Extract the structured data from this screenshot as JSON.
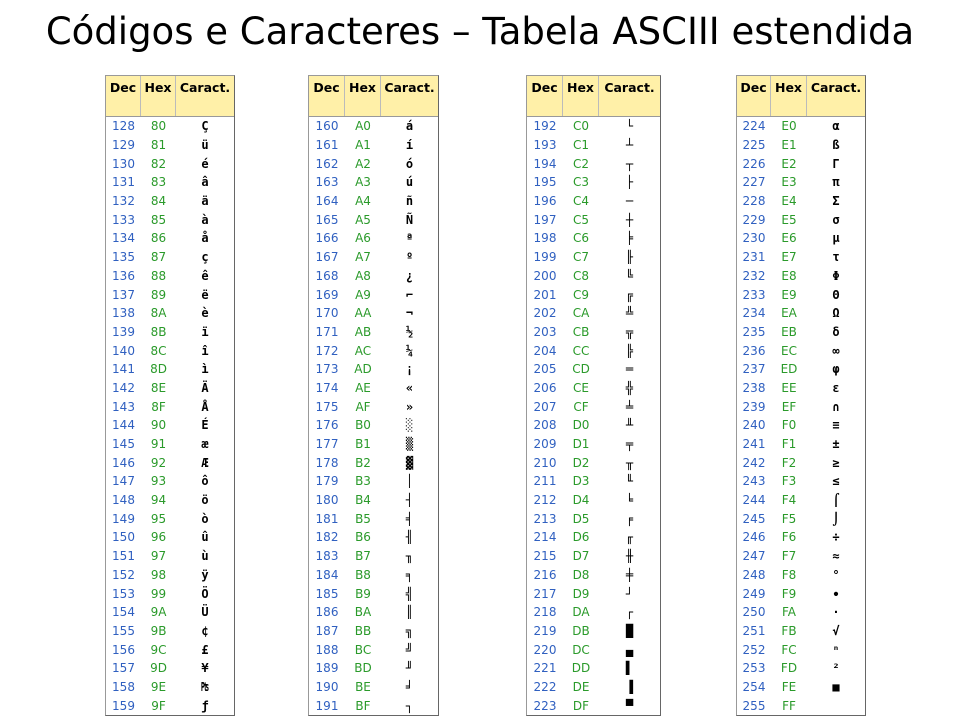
{
  "title": "Códigos e Caracteres – Tabela ASCIII estendida",
  "tables": [
    {
      "header": [
        "Dec",
        "Hex",
        "Caract."
      ],
      "rows": [
        [
          128,
          "80",
          "Ç"
        ],
        [
          129,
          "81",
          "ü"
        ],
        [
          130,
          "82",
          "é"
        ],
        [
          131,
          "83",
          "â"
        ],
        [
          132,
          "84",
          "ä"
        ],
        [
          133,
          "85",
          "à"
        ],
        [
          134,
          "86",
          "å"
        ],
        [
          135,
          "87",
          "ç"
        ],
        [
          136,
          "88",
          "ê"
        ],
        [
          137,
          "89",
          "ë"
        ],
        [
          138,
          "8A",
          "è"
        ],
        [
          139,
          "8B",
          "ï"
        ],
        [
          140,
          "8C",
          "î"
        ],
        [
          141,
          "8D",
          "ì"
        ],
        [
          142,
          "8E",
          "Ä"
        ],
        [
          143,
          "8F",
          "Å"
        ],
        [
          144,
          "90",
          "É"
        ],
        [
          145,
          "91",
          "æ"
        ],
        [
          146,
          "92",
          "Æ"
        ],
        [
          147,
          "93",
          "ô"
        ],
        [
          148,
          "94",
          "ö"
        ],
        [
          149,
          "95",
          "ò"
        ],
        [
          150,
          "96",
          "û"
        ],
        [
          151,
          "97",
          "ù"
        ],
        [
          152,
          "98",
          "ÿ"
        ],
        [
          153,
          "99",
          "Ö"
        ],
        [
          154,
          "9A",
          "Ü"
        ],
        [
          155,
          "9B",
          "¢"
        ],
        [
          156,
          "9C",
          "£"
        ],
        [
          157,
          "9D",
          "¥"
        ],
        [
          158,
          "9E",
          "₧"
        ],
        [
          159,
          "9F",
          "ƒ"
        ]
      ]
    },
    {
      "header": [
        "Dec",
        "Hex",
        "Caract."
      ],
      "rows": [
        [
          160,
          "A0",
          "á"
        ],
        [
          161,
          "A1",
          "í"
        ],
        [
          162,
          "A2",
          "ó"
        ],
        [
          163,
          "A3",
          "ú"
        ],
        [
          164,
          "A4",
          "ñ"
        ],
        [
          165,
          "A5",
          "Ñ"
        ],
        [
          166,
          "A6",
          "ª"
        ],
        [
          167,
          "A7",
          "º"
        ],
        [
          168,
          "A8",
          "¿"
        ],
        [
          169,
          "A9",
          "⌐"
        ],
        [
          170,
          "AA",
          "¬"
        ],
        [
          171,
          "AB",
          "½"
        ],
        [
          172,
          "AC",
          "¼"
        ],
        [
          173,
          "AD",
          "¡"
        ],
        [
          174,
          "AE",
          "«"
        ],
        [
          175,
          "AF",
          "»"
        ],
        [
          176,
          "B0",
          "░"
        ],
        [
          177,
          "B1",
          "▒"
        ],
        [
          178,
          "B2",
          "▓"
        ],
        [
          179,
          "B3",
          "│"
        ],
        [
          180,
          "B4",
          "┤"
        ],
        [
          181,
          "B5",
          "╡"
        ],
        [
          182,
          "B6",
          "╢"
        ],
        [
          183,
          "B7",
          "╖"
        ],
        [
          184,
          "B8",
          "╕"
        ],
        [
          185,
          "B9",
          "╣"
        ],
        [
          186,
          "BA",
          "║"
        ],
        [
          187,
          "BB",
          "╗"
        ],
        [
          188,
          "BC",
          "╝"
        ],
        [
          189,
          "BD",
          "╜"
        ],
        [
          190,
          "BE",
          "╛"
        ],
        [
          191,
          "BF",
          "┐"
        ]
      ]
    },
    {
      "header": [
        "Dec",
        "Hex",
        "Caract."
      ],
      "rows": [
        [
          192,
          "C0",
          "└"
        ],
        [
          193,
          "C1",
          "┴"
        ],
        [
          194,
          "C2",
          "┬"
        ],
        [
          195,
          "C3",
          "├"
        ],
        [
          196,
          "C4",
          "─"
        ],
        [
          197,
          "C5",
          "┼"
        ],
        [
          198,
          "C6",
          "╞"
        ],
        [
          199,
          "C7",
          "╟"
        ],
        [
          200,
          "C8",
          "╚"
        ],
        [
          201,
          "C9",
          "╔"
        ],
        [
          202,
          "CA",
          "╩"
        ],
        [
          203,
          "CB",
          "╦"
        ],
        [
          204,
          "CC",
          "╠"
        ],
        [
          205,
          "CD",
          "═"
        ],
        [
          206,
          "CE",
          "╬"
        ],
        [
          207,
          "CF",
          "╧"
        ],
        [
          208,
          "D0",
          "╨"
        ],
        [
          209,
          "D1",
          "╤"
        ],
        [
          210,
          "D2",
          "╥"
        ],
        [
          211,
          "D3",
          "╙"
        ],
        [
          212,
          "D4",
          "╘"
        ],
        [
          213,
          "D5",
          "╒"
        ],
        [
          214,
          "D6",
          "╓"
        ],
        [
          215,
          "D7",
          "╫"
        ],
        [
          216,
          "D8",
          "╪"
        ],
        [
          217,
          "D9",
          "┘"
        ],
        [
          218,
          "DA",
          "┌"
        ],
        [
          219,
          "DB",
          "█"
        ],
        [
          220,
          "DC",
          "▄"
        ],
        [
          221,
          "DD",
          "▌"
        ],
        [
          222,
          "DE",
          "▐"
        ],
        [
          223,
          "DF",
          "▀"
        ]
      ]
    },
    {
      "header": [
        "Dec",
        "Hex",
        "Caract."
      ],
      "rows": [
        [
          224,
          "E0",
          "α"
        ],
        [
          225,
          "E1",
          "ß"
        ],
        [
          226,
          "E2",
          "Γ"
        ],
        [
          227,
          "E3",
          "π"
        ],
        [
          228,
          "E4",
          "Σ"
        ],
        [
          229,
          "E5",
          "σ"
        ],
        [
          230,
          "E6",
          "µ"
        ],
        [
          231,
          "E7",
          "τ"
        ],
        [
          232,
          "E8",
          "Φ"
        ],
        [
          233,
          "E9",
          "Θ"
        ],
        [
          234,
          "EA",
          "Ω"
        ],
        [
          235,
          "EB",
          "δ"
        ],
        [
          236,
          "EC",
          "∞"
        ],
        [
          237,
          "ED",
          "φ"
        ],
        [
          238,
          "EE",
          "ε"
        ],
        [
          239,
          "EF",
          "∩"
        ],
        [
          240,
          "F0",
          "≡"
        ],
        [
          241,
          "F1",
          "±"
        ],
        [
          242,
          "F2",
          "≥"
        ],
        [
          243,
          "F3",
          "≤"
        ],
        [
          244,
          "F4",
          "⌠"
        ],
        [
          245,
          "F5",
          "⌡"
        ],
        [
          246,
          "F6",
          "÷"
        ],
        [
          247,
          "F7",
          "≈"
        ],
        [
          248,
          "F8",
          "°"
        ],
        [
          249,
          "F9",
          "∙"
        ],
        [
          250,
          "FA",
          "·"
        ],
        [
          251,
          "FB",
          "√"
        ],
        [
          252,
          "FC",
          "ⁿ"
        ],
        [
          253,
          "FD",
          "²"
        ],
        [
          254,
          "FE",
          "■"
        ],
        [
          255,
          "FF",
          null
        ]
      ]
    }
  ]
}
